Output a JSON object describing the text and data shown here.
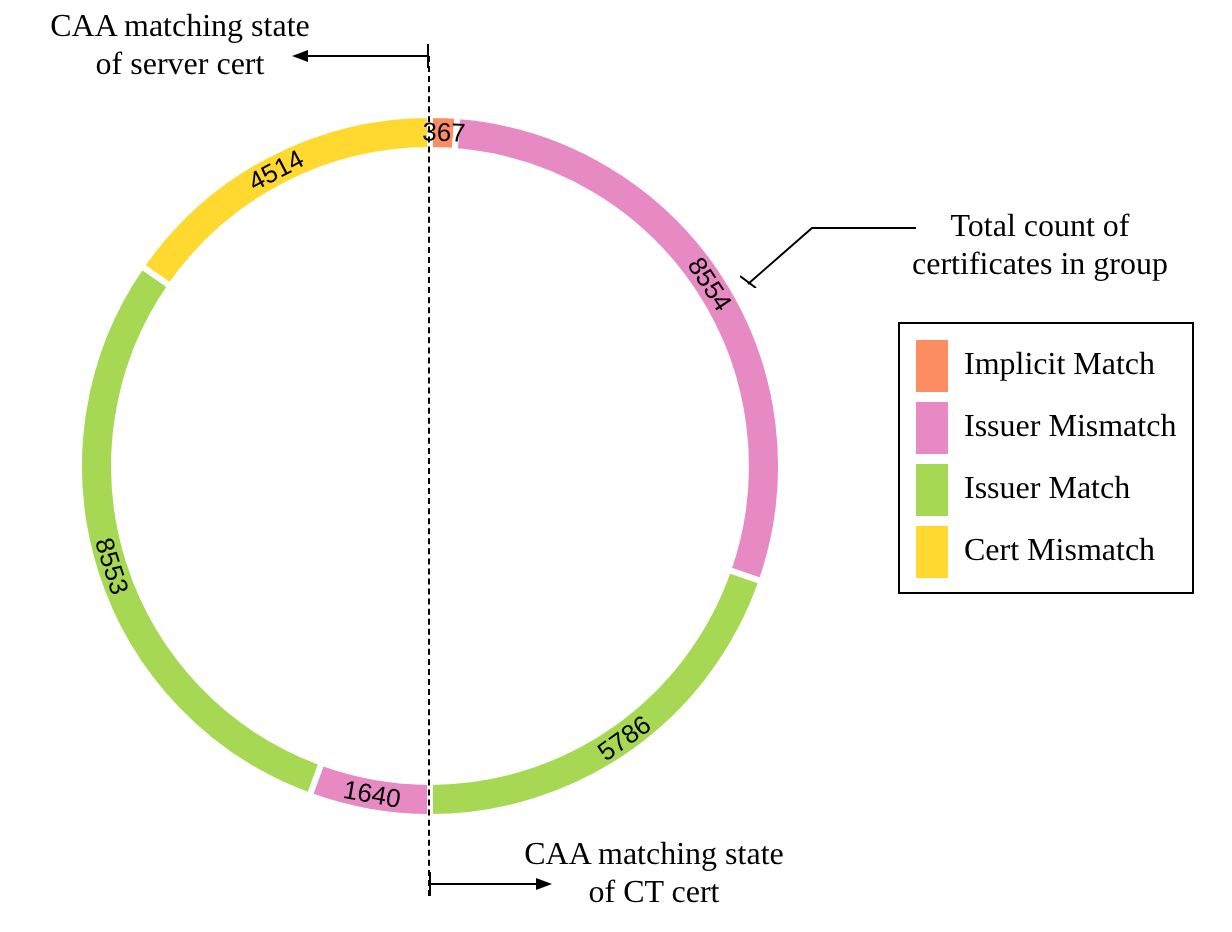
{
  "chart_data": {
    "type": "donut",
    "categories": [
      "Implicit Match",
      "Issuer Mismatch",
      "Issuer Match",
      null,
      null,
      "Cert Mismatch"
    ],
    "values": [
      367,
      8554,
      5786,
      1640,
      8553,
      4514
    ],
    "colors": [
      "#fc8d62",
      "#e78ac3",
      "#a6d854",
      "#e78ac3",
      "#a6d854",
      "#ffd92f"
    ],
    "data_labels": true,
    "legend": "right",
    "annotations": [
      "CAA matching state of server cert",
      "Total count of certificates in group",
      "CAA matching state of CT cert"
    ]
  }
}
